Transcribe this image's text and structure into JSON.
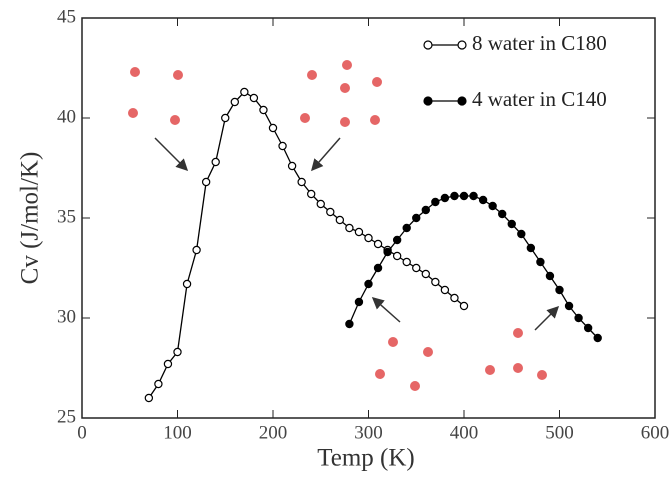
{
  "chart_data": {
    "type": "line",
    "xlabel": "Temp (K)",
    "ylabel": "Cv (J/mol/K)",
    "xlim": [
      0,
      600
    ],
    "xticks": [
      0,
      100,
      200,
      300,
      400,
      500,
      600
    ],
    "ylim": [
      25,
      45
    ],
    "yticks": [
      25,
      30,
      35,
      40,
      45
    ],
    "legend": "upper right",
    "series": [
      {
        "name": "8 water in C180",
        "color": "#000000",
        "marker": "open",
        "x": [
          70,
          80,
          90,
          100,
          110,
          120,
          130,
          140,
          150,
          160,
          170,
          180,
          190,
          200,
          210,
          220,
          230,
          240,
          250,
          260,
          270,
          280,
          290,
          300,
          310,
          320,
          330,
          340,
          350,
          360,
          370,
          380,
          390,
          400
        ],
        "values": [
          26.0,
          26.7,
          27.7,
          28.3,
          31.7,
          33.4,
          36.8,
          37.8,
          40.0,
          40.8,
          41.3,
          41.0,
          40.4,
          39.5,
          38.6,
          37.6,
          36.8,
          36.2,
          35.7,
          35.3,
          34.9,
          34.5,
          34.3,
          34.0,
          33.7,
          33.4,
          33.1,
          32.8,
          32.5,
          32.2,
          31.8,
          31.4,
          31.0,
          30.6
        ]
      },
      {
        "name": "4 water in C140",
        "color": "#000000",
        "marker": "filled",
        "x": [
          280,
          290,
          300,
          310,
          320,
          330,
          340,
          350,
          360,
          370,
          380,
          390,
          400,
          410,
          420,
          430,
          440,
          450,
          460,
          470,
          480,
          490,
          500,
          510,
          520,
          530,
          540
        ],
        "values": [
          29.7,
          30.8,
          31.7,
          32.5,
          33.3,
          33.9,
          34.5,
          35.0,
          35.4,
          35.8,
          36.0,
          36.1,
          36.1,
          36.1,
          35.9,
          35.6,
          35.2,
          34.7,
          34.2,
          33.5,
          32.8,
          32.1,
          31.4,
          30.6,
          30.0,
          29.5,
          29.0
        ]
      }
    ]
  }
}
